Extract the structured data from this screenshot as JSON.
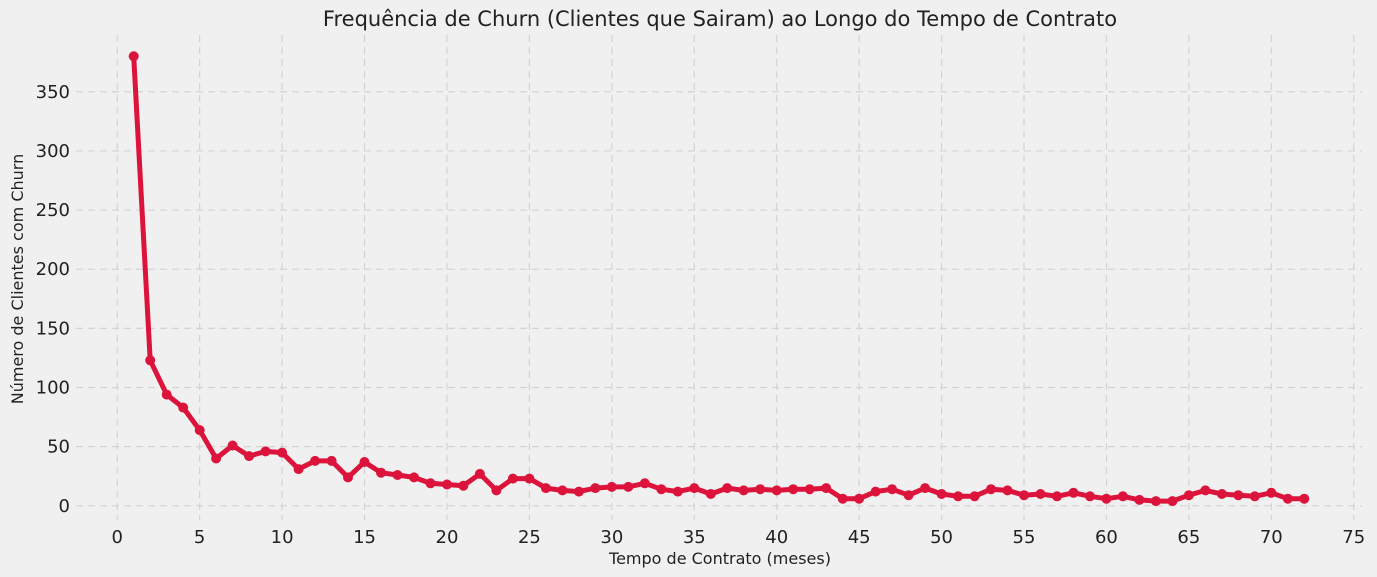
{
  "chart_data": {
    "type": "line",
    "title": "Frequência de Churn (Clientes que Sairam) ao Longo do Tempo de Contrato",
    "xlabel": "Tempo de Contrato (meses)",
    "ylabel": "Número de Clientes com Churn",
    "xlim": [
      -2.5,
      75.5
    ],
    "ylim": [
      -12,
      398
    ],
    "xticks": [
      "0",
      "5",
      "10",
      "15",
      "20",
      "25",
      "30",
      "35",
      "40",
      "45",
      "50",
      "55",
      "60",
      "65",
      "70",
      "75"
    ],
    "yticks": [
      "0",
      "50",
      "100",
      "150",
      "200",
      "250",
      "300",
      "350"
    ],
    "grid": true,
    "line_color": "#dc143c",
    "background": "#f0f0f0",
    "series": [
      {
        "x": [
          1,
          2,
          3,
          4,
          5,
          6,
          7,
          8,
          9,
          10,
          11,
          12,
          13,
          14,
          15,
          16,
          17,
          18,
          19,
          20,
          21,
          22,
          23,
          24,
          25,
          26,
          27,
          28,
          29,
          30,
          31,
          32,
          33,
          34,
          35,
          36,
          37,
          38,
          39,
          40,
          41,
          42,
          43,
          44,
          45,
          46,
          47,
          48,
          49,
          50,
          51,
          52,
          53,
          54,
          55,
          56,
          57,
          58,
          59,
          60,
          61,
          62,
          63,
          64,
          65,
          66,
          67,
          68,
          69,
          70,
          71,
          72
        ],
        "values": [
          380,
          123,
          94,
          83,
          64,
          40,
          51,
          42,
          46,
          45,
          31,
          38,
          38,
          24,
          37,
          28,
          26,
          24,
          19,
          18,
          17,
          27,
          13,
          23,
          23,
          15,
          13,
          12,
          15,
          16,
          16,
          19,
          14,
          12,
          15,
          10,
          15,
          13,
          14,
          13,
          14,
          14,
          15,
          6,
          6,
          12,
          14,
          9,
          15,
          10,
          8,
          8,
          14,
          13,
          9,
          10,
          8,
          11,
          8,
          6,
          8,
          5,
          4,
          4,
          9,
          13,
          10,
          9,
          8,
          11,
          6,
          6
        ]
      }
    ]
  }
}
